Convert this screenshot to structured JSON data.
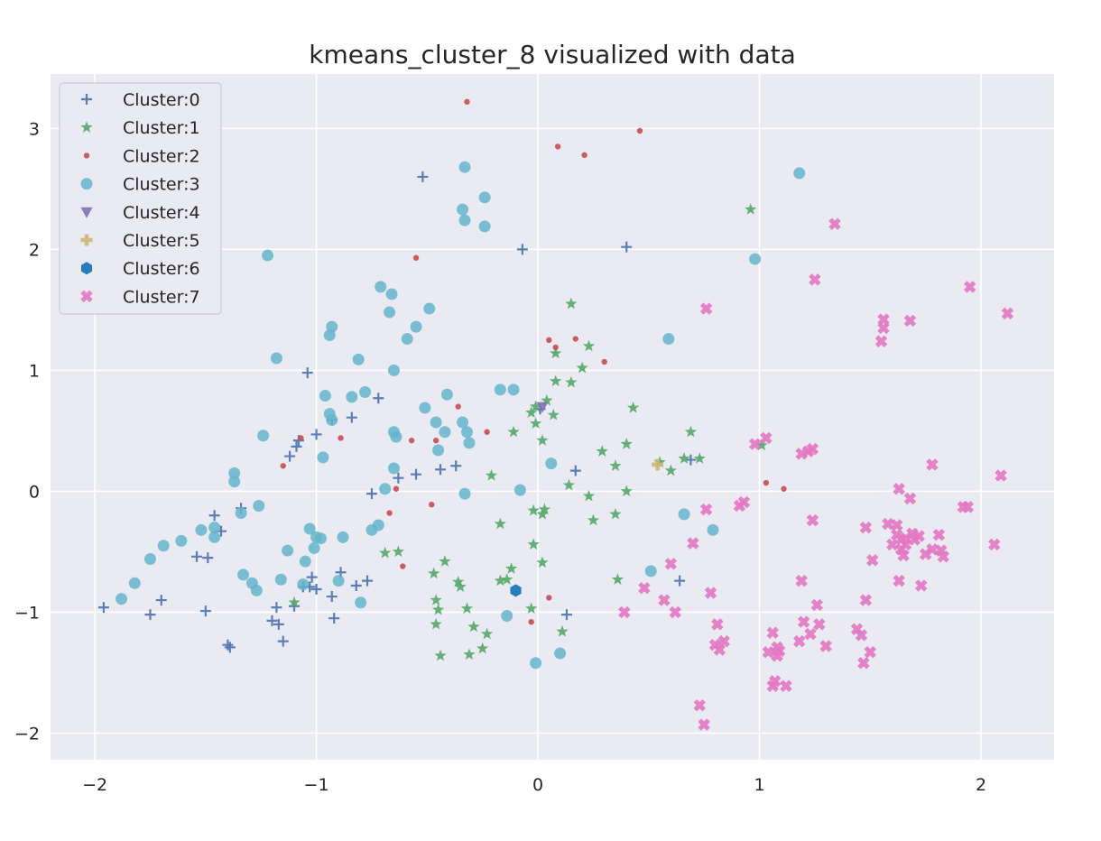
{
  "chart_data": {
    "type": "scatter",
    "title": "kmeans_cluster_8 visualized with data",
    "xlabel": "",
    "ylabel": "",
    "xlim": [
      -2.2,
      2.33
    ],
    "ylim": [
      -2.22,
      3.45
    ],
    "x_ticks": [
      -2,
      -1,
      0,
      1,
      2
    ],
    "x_tick_labels": [
      "−2",
      "−1",
      "0",
      "1",
      "2"
    ],
    "y_ticks": [
      -2,
      -1,
      0,
      1,
      2,
      3
    ],
    "y_tick_labels": [
      "−2",
      "−1",
      "0",
      "1",
      "2",
      "3"
    ],
    "grid": true,
    "legend_position": "top-left",
    "series": [
      {
        "name": "Cluster:0",
        "marker": "plus",
        "color": "#4c72b0",
        "points": [
          [
            -1.96,
            -0.96
          ],
          [
            -1.75,
            -1.02
          ],
          [
            -1.7,
            -0.9
          ],
          [
            -1.54,
            -0.54
          ],
          [
            -1.49,
            -0.55
          ],
          [
            -1.5,
            -0.99
          ],
          [
            -1.46,
            -0.2
          ],
          [
            -1.43,
            -0.33
          ],
          [
            -1.4,
            -1.27
          ],
          [
            -1.39,
            -1.29
          ],
          [
            -1.34,
            -0.14
          ],
          [
            -1.2,
            -1.07
          ],
          [
            -1.18,
            -0.96
          ],
          [
            -1.17,
            -1.1
          ],
          [
            -1.15,
            -1.24
          ],
          [
            -1.12,
            0.29
          ],
          [
            -1.1,
            -0.95
          ],
          [
            -1.09,
            0.37
          ],
          [
            -1.08,
            0.42
          ],
          [
            -1.06,
            -0.79
          ],
          [
            -1.04,
            0.98
          ],
          [
            -1.03,
            -0.79
          ],
          [
            -1.02,
            -0.71
          ],
          [
            -1.0,
            -0.81
          ],
          [
            -1.0,
            0.47
          ],
          [
            -0.93,
            0.59
          ],
          [
            -0.93,
            -0.87
          ],
          [
            -0.92,
            -1.05
          ],
          [
            -0.89,
            -0.67
          ],
          [
            -0.84,
            0.61
          ],
          [
            -0.82,
            -0.78
          ],
          [
            -0.77,
            -0.74
          ],
          [
            -0.75,
            -0.02
          ],
          [
            -0.72,
            0.77
          ],
          [
            -0.63,
            0.11
          ],
          [
            -0.55,
            0.14
          ],
          [
            -0.52,
            2.6
          ],
          [
            -0.44,
            0.18
          ],
          [
            -0.37,
            0.21
          ],
          [
            -0.07,
            2.0
          ],
          [
            0.01,
            0.68
          ],
          [
            0.13,
            -1.02
          ],
          [
            0.17,
            0.17
          ],
          [
            0.4,
            2.02
          ],
          [
            0.64,
            -0.74
          ],
          [
            0.69,
            0.26
          ]
        ]
      },
      {
        "name": "Cluster:1",
        "marker": "star",
        "color": "#55a868",
        "points": [
          [
            -1.1,
            -0.92
          ],
          [
            -0.69,
            -0.51
          ],
          [
            -0.63,
            -0.5
          ],
          [
            -0.47,
            -0.68
          ],
          [
            -0.46,
            -0.9
          ],
          [
            -0.46,
            -1.1
          ],
          [
            -0.45,
            -0.98
          ],
          [
            -0.44,
            -1.36
          ],
          [
            -0.42,
            -0.58
          ],
          [
            -0.36,
            -0.75
          ],
          [
            -0.35,
            -0.79
          ],
          [
            -0.32,
            -0.97
          ],
          [
            -0.31,
            -1.35
          ],
          [
            -0.29,
            -1.12
          ],
          [
            -0.25,
            -1.3
          ],
          [
            -0.23,
            -1.18
          ],
          [
            -0.21,
            0.13
          ],
          [
            -0.17,
            -0.27
          ],
          [
            -0.17,
            -0.74
          ],
          [
            -0.14,
            -0.73
          ],
          [
            -0.12,
            -0.64
          ],
          [
            -0.11,
            0.49
          ],
          [
            -0.03,
            -0.97
          ],
          [
            -0.03,
            0.65
          ],
          [
            -0.02,
            -0.16
          ],
          [
            -0.01,
            0.7
          ],
          [
            -0.01,
            0.56
          ],
          [
            -0.02,
            -0.44
          ],
          [
            0.02,
            -0.19
          ],
          [
            0.03,
            -0.15
          ],
          [
            0.02,
            0.42
          ],
          [
            0.02,
            -0.59
          ],
          [
            0.04,
            0.75
          ],
          [
            0.07,
            0.63
          ],
          [
            0.08,
            1.14
          ],
          [
            0.08,
            0.91
          ],
          [
            0.11,
            -1.16
          ],
          [
            0.14,
            0.05
          ],
          [
            0.15,
            0.9
          ],
          [
            0.15,
            1.55
          ],
          [
            0.2,
            1.02
          ],
          [
            0.23,
            -0.04
          ],
          [
            0.23,
            1.2
          ],
          [
            0.25,
            -0.24
          ],
          [
            0.29,
            0.33
          ],
          [
            0.35,
            0.21
          ],
          [
            0.35,
            -0.19
          ],
          [
            0.36,
            -0.73
          ],
          [
            0.4,
            -0.0
          ],
          [
            0.4,
            0.39
          ],
          [
            0.43,
            0.69
          ],
          [
            0.55,
            0.24
          ],
          [
            0.6,
            0.17
          ],
          [
            0.66,
            0.27
          ],
          [
            0.69,
            0.49
          ],
          [
            0.73,
            0.27
          ],
          [
            0.96,
            2.33
          ],
          [
            1.01,
            0.38
          ]
        ]
      },
      {
        "name": "Cluster:2",
        "marker": "dot",
        "color": "#c44e52",
        "points": [
          [
            -1.15,
            0.21
          ],
          [
            -1.07,
            0.44
          ],
          [
            -0.89,
            0.44
          ],
          [
            -0.67,
            -0.18
          ],
          [
            -0.64,
            0.02
          ],
          [
            -0.61,
            -0.62
          ],
          [
            -0.57,
            0.42
          ],
          [
            -0.55,
            1.93
          ],
          [
            -0.48,
            -0.11
          ],
          [
            -0.46,
            0.42
          ],
          [
            -0.36,
            0.7
          ],
          [
            -0.32,
            3.22
          ],
          [
            -0.23,
            0.49
          ],
          [
            -0.03,
            -1.08
          ],
          [
            0.05,
            -0.88
          ],
          [
            0.05,
            1.25
          ],
          [
            0.08,
            1.19
          ],
          [
            0.09,
            2.85
          ],
          [
            0.17,
            1.26
          ],
          [
            0.21,
            2.78
          ],
          [
            0.3,
            1.07
          ],
          [
            0.46,
            2.98
          ],
          [
            1.03,
            0.07
          ],
          [
            1.11,
            0.02
          ]
        ]
      },
      {
        "name": "Cluster:3",
        "marker": "circle",
        "color": "#64b5cd",
        "points": [
          [
            -1.88,
            -0.89
          ],
          [
            -1.82,
            -0.76
          ],
          [
            -1.75,
            -0.56
          ],
          [
            -1.69,
            -0.45
          ],
          [
            -1.61,
            -0.41
          ],
          [
            -1.52,
            -0.32
          ],
          [
            -1.46,
            -0.3
          ],
          [
            -1.46,
            -0.38
          ],
          [
            -1.37,
            0.15
          ],
          [
            -1.37,
            0.08
          ],
          [
            -1.34,
            -0.18
          ],
          [
            -1.33,
            -0.69
          ],
          [
            -1.29,
            -0.76
          ],
          [
            -1.27,
            -0.82
          ],
          [
            -1.26,
            -0.12
          ],
          [
            -1.24,
            0.46
          ],
          [
            -1.22,
            1.95
          ],
          [
            -1.18,
            1.1
          ],
          [
            -1.16,
            -0.73
          ],
          [
            -1.13,
            -0.49
          ],
          [
            -1.06,
            -0.77
          ],
          [
            -1.05,
            -0.58
          ],
          [
            -1.03,
            -0.31
          ],
          [
            -1.01,
            -0.47
          ],
          [
            -1.0,
            -0.38
          ],
          [
            -0.98,
            -0.39
          ],
          [
            -0.97,
            0.28
          ],
          [
            -0.96,
            0.79
          ],
          [
            -0.94,
            1.29
          ],
          [
            -0.93,
            1.36
          ],
          [
            -0.94,
            0.64
          ],
          [
            -0.93,
            0.59
          ],
          [
            -0.9,
            -0.74
          ],
          [
            -0.88,
            -0.38
          ],
          [
            -0.84,
            0.78
          ],
          [
            -0.81,
            1.09
          ],
          [
            -0.8,
            -0.92
          ],
          [
            -0.78,
            0.82
          ],
          [
            -0.75,
            -0.32
          ],
          [
            -0.72,
            -0.28
          ],
          [
            -0.71,
            1.69
          ],
          [
            -0.69,
            0.02
          ],
          [
            -0.67,
            1.48
          ],
          [
            -0.66,
            1.63
          ],
          [
            -0.65,
            0.19
          ],
          [
            -0.65,
            1.0
          ],
          [
            -0.65,
            0.49
          ],
          [
            -0.64,
            0.45
          ],
          [
            -0.59,
            1.26
          ],
          [
            -0.55,
            1.36
          ],
          [
            -0.51,
            0.69
          ],
          [
            -0.49,
            1.51
          ],
          [
            -0.46,
            0.57
          ],
          [
            -0.45,
            0.34
          ],
          [
            -0.42,
            0.49
          ],
          [
            -0.41,
            0.8
          ],
          [
            -0.34,
            2.33
          ],
          [
            -0.33,
            2.24
          ],
          [
            -0.33,
            2.68
          ],
          [
            -0.34,
            0.57
          ],
          [
            -0.33,
            -0.02
          ],
          [
            -0.32,
            0.49
          ],
          [
            -0.31,
            0.4
          ],
          [
            -0.24,
            2.43
          ],
          [
            -0.24,
            2.19
          ],
          [
            -0.17,
            0.84
          ],
          [
            -0.14,
            -1.03
          ],
          [
            -0.11,
            0.84
          ],
          [
            -0.08,
            0.01
          ],
          [
            -0.01,
            -1.42
          ],
          [
            0.06,
            0.23
          ],
          [
            0.1,
            -1.34
          ],
          [
            0.51,
            -0.66
          ],
          [
            0.59,
            1.26
          ],
          [
            0.66,
            -0.19
          ],
          [
            0.79,
            -0.32
          ],
          [
            0.98,
            1.92
          ],
          [
            1.18,
            2.63
          ]
        ]
      },
      {
        "name": "Cluster:4",
        "marker": "triangle-down",
        "color": "#8172b2",
        "points": [
          [
            0.02,
            0.7
          ]
        ]
      },
      {
        "name": "Cluster:5",
        "marker": "plus-filled",
        "color": "#ccb974",
        "points": [
          [
            0.54,
            0.22
          ]
        ]
      },
      {
        "name": "Cluster:6",
        "marker": "hexagon",
        "color": "#1f77b4",
        "points": [
          [
            -0.1,
            -0.82
          ]
        ]
      },
      {
        "name": "Cluster:7",
        "marker": "x-filled",
        "color": "#e377c2",
        "points": [
          [
            0.39,
            -1.0
          ],
          [
            0.48,
            -0.8
          ],
          [
            0.57,
            -0.9
          ],
          [
            0.6,
            -0.6
          ],
          [
            0.62,
            -1.0
          ],
          [
            0.7,
            -0.43
          ],
          [
            0.73,
            -1.77
          ],
          [
            0.75,
            -1.93
          ],
          [
            0.76,
            -0.15
          ],
          [
            0.76,
            1.51
          ],
          [
            0.78,
            -0.84
          ],
          [
            0.8,
            -1.27
          ],
          [
            0.81,
            -1.1
          ],
          [
            0.82,
            -1.31
          ],
          [
            0.84,
            -1.24
          ],
          [
            0.91,
            -0.12
          ],
          [
            0.93,
            -0.09
          ],
          [
            0.98,
            0.39
          ],
          [
            1.03,
            0.44
          ],
          [
            1.04,
            -1.33
          ],
          [
            1.06,
            -1.17
          ],
          [
            1.06,
            -1.61
          ],
          [
            1.07,
            -1.57
          ],
          [
            1.08,
            -1.29
          ],
          [
            1.08,
            -1.36
          ],
          [
            1.09,
            -1.32
          ],
          [
            1.12,
            -1.61
          ],
          [
            1.18,
            -1.24
          ],
          [
            1.19,
            -0.74
          ],
          [
            1.19,
            0.31
          ],
          [
            1.2,
            -1.08
          ],
          [
            1.22,
            0.33
          ],
          [
            1.23,
            -1.18
          ],
          [
            1.24,
            0.35
          ],
          [
            1.24,
            -0.24
          ],
          [
            1.25,
            1.75
          ],
          [
            1.26,
            -0.94
          ],
          [
            1.27,
            -1.1
          ],
          [
            1.3,
            -1.28
          ],
          [
            1.34,
            2.21
          ],
          [
            1.44,
            -1.14
          ],
          [
            1.46,
            -1.19
          ],
          [
            1.47,
            -1.42
          ],
          [
            1.48,
            -0.9
          ],
          [
            1.48,
            -0.3
          ],
          [
            1.5,
            -1.33
          ],
          [
            1.51,
            -0.57
          ],
          [
            1.55,
            1.24
          ],
          [
            1.56,
            1.35
          ],
          [
            1.56,
            1.42
          ],
          [
            1.58,
            -0.27
          ],
          [
            1.6,
            -0.44
          ],
          [
            1.62,
            -0.28
          ],
          [
            1.62,
            -0.36
          ],
          [
            1.63,
            -0.74
          ],
          [
            1.63,
            0.02
          ],
          [
            1.64,
            -0.4
          ],
          [
            1.64,
            -0.48
          ],
          [
            1.65,
            -0.53
          ],
          [
            1.66,
            -0.44
          ],
          [
            1.66,
            -0.39
          ],
          [
            1.68,
            -0.06
          ],
          [
            1.68,
            1.41
          ],
          [
            1.69,
            -0.35
          ],
          [
            1.7,
            -0.4
          ],
          [
            1.72,
            -0.37
          ],
          [
            1.73,
            -0.78
          ],
          [
            1.75,
            -0.52
          ],
          [
            1.78,
            -0.48
          ],
          [
            1.78,
            0.22
          ],
          [
            1.81,
            -0.36
          ],
          [
            1.82,
            -0.49
          ],
          [
            1.83,
            -0.54
          ],
          [
            1.92,
            -0.13
          ],
          [
            1.94,
            -0.13
          ],
          [
            1.95,
            1.69
          ],
          [
            2.06,
            -0.44
          ],
          [
            2.09,
            0.13
          ],
          [
            2.12,
            1.47
          ]
        ]
      }
    ]
  }
}
